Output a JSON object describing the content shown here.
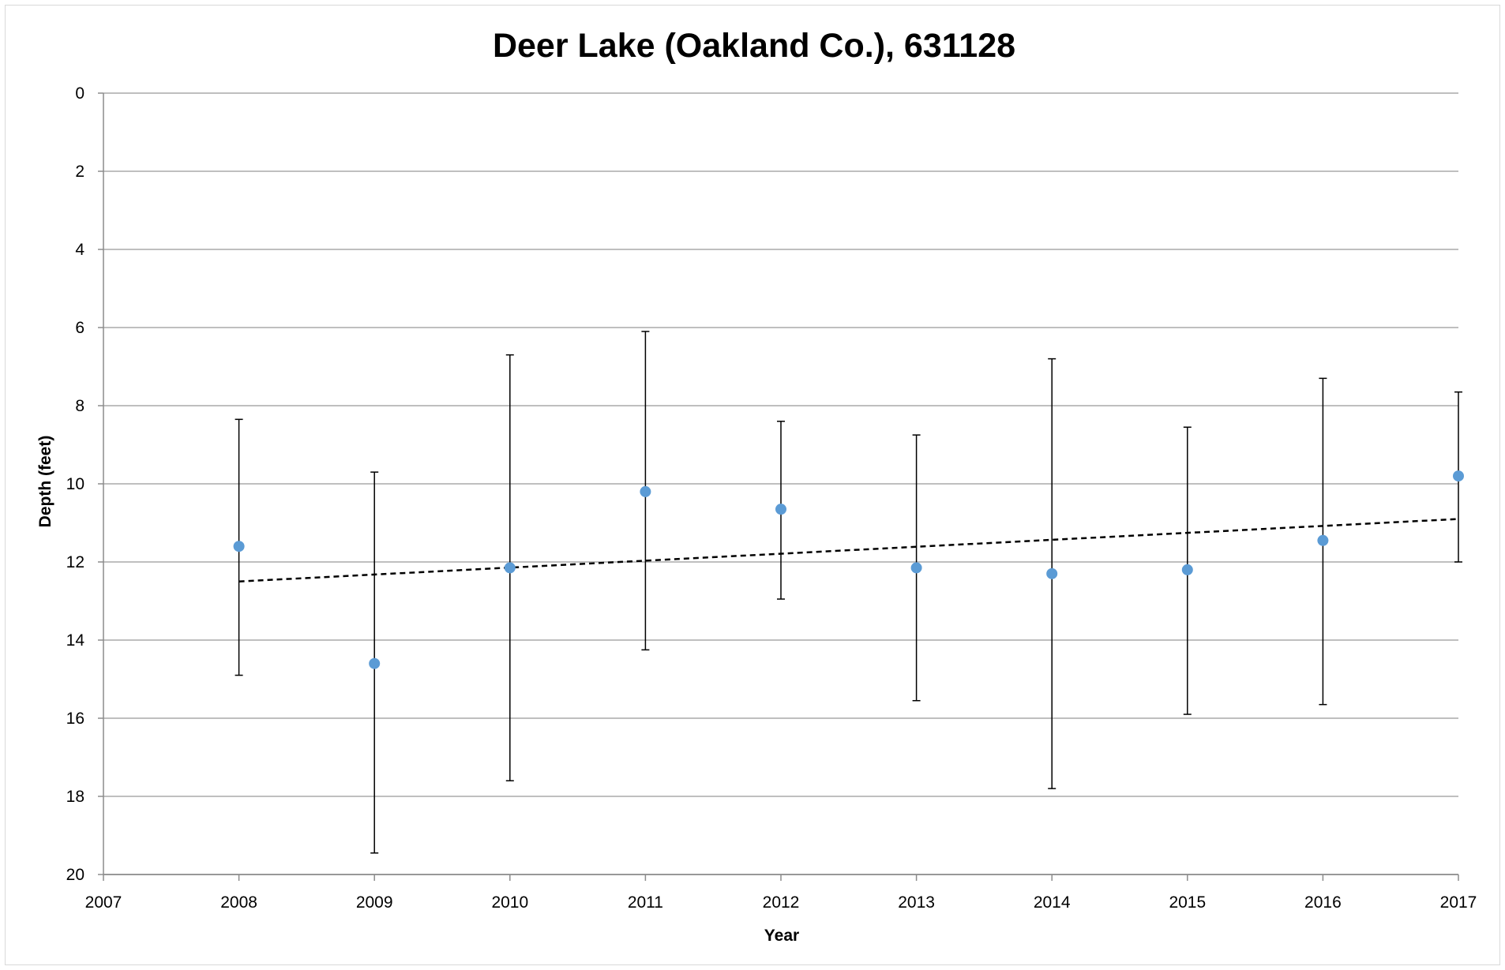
{
  "chart_data": {
    "type": "scatter",
    "title": "Deer Lake (Oakland Co.), 631128",
    "xlabel": "Year",
    "ylabel": "Depth (feet)",
    "xlim": [
      2007,
      2017
    ],
    "ylim": [
      0,
      20
    ],
    "y_reversed": true,
    "x_ticks": [
      "2007",
      "2008",
      "2009",
      "2010",
      "2011",
      "2012",
      "2013",
      "2014",
      "2015",
      "2016",
      "2017"
    ],
    "y_ticks": [
      "0",
      "2",
      "4",
      "6",
      "8",
      "10",
      "12",
      "14",
      "16",
      "18",
      "20"
    ],
    "grid": "horizontal",
    "legend": "none",
    "series": [
      {
        "marker_color": "#5b9bd5",
        "x": [
          2008,
          2009,
          2010,
          2011,
          2012,
          2013,
          2014,
          2015,
          2016,
          2017
        ],
        "y": [
          11.6,
          14.6,
          12.15,
          10.2,
          10.65,
          12.15,
          12.3,
          12.2,
          11.45,
          9.8
        ],
        "error_low": [
          8.35,
          9.7,
          6.7,
          6.1,
          8.4,
          8.75,
          6.8,
          8.55,
          7.3,
          7.65
        ],
        "error_high": [
          14.9,
          19.45,
          17.6,
          14.25,
          12.95,
          15.55,
          17.8,
          15.9,
          15.65,
          12.0
        ]
      }
    ],
    "trendline": {
      "style": "dashed",
      "color": "#000000",
      "x": [
        2008,
        2017
      ],
      "y": [
        12.5,
        10.9
      ]
    }
  }
}
